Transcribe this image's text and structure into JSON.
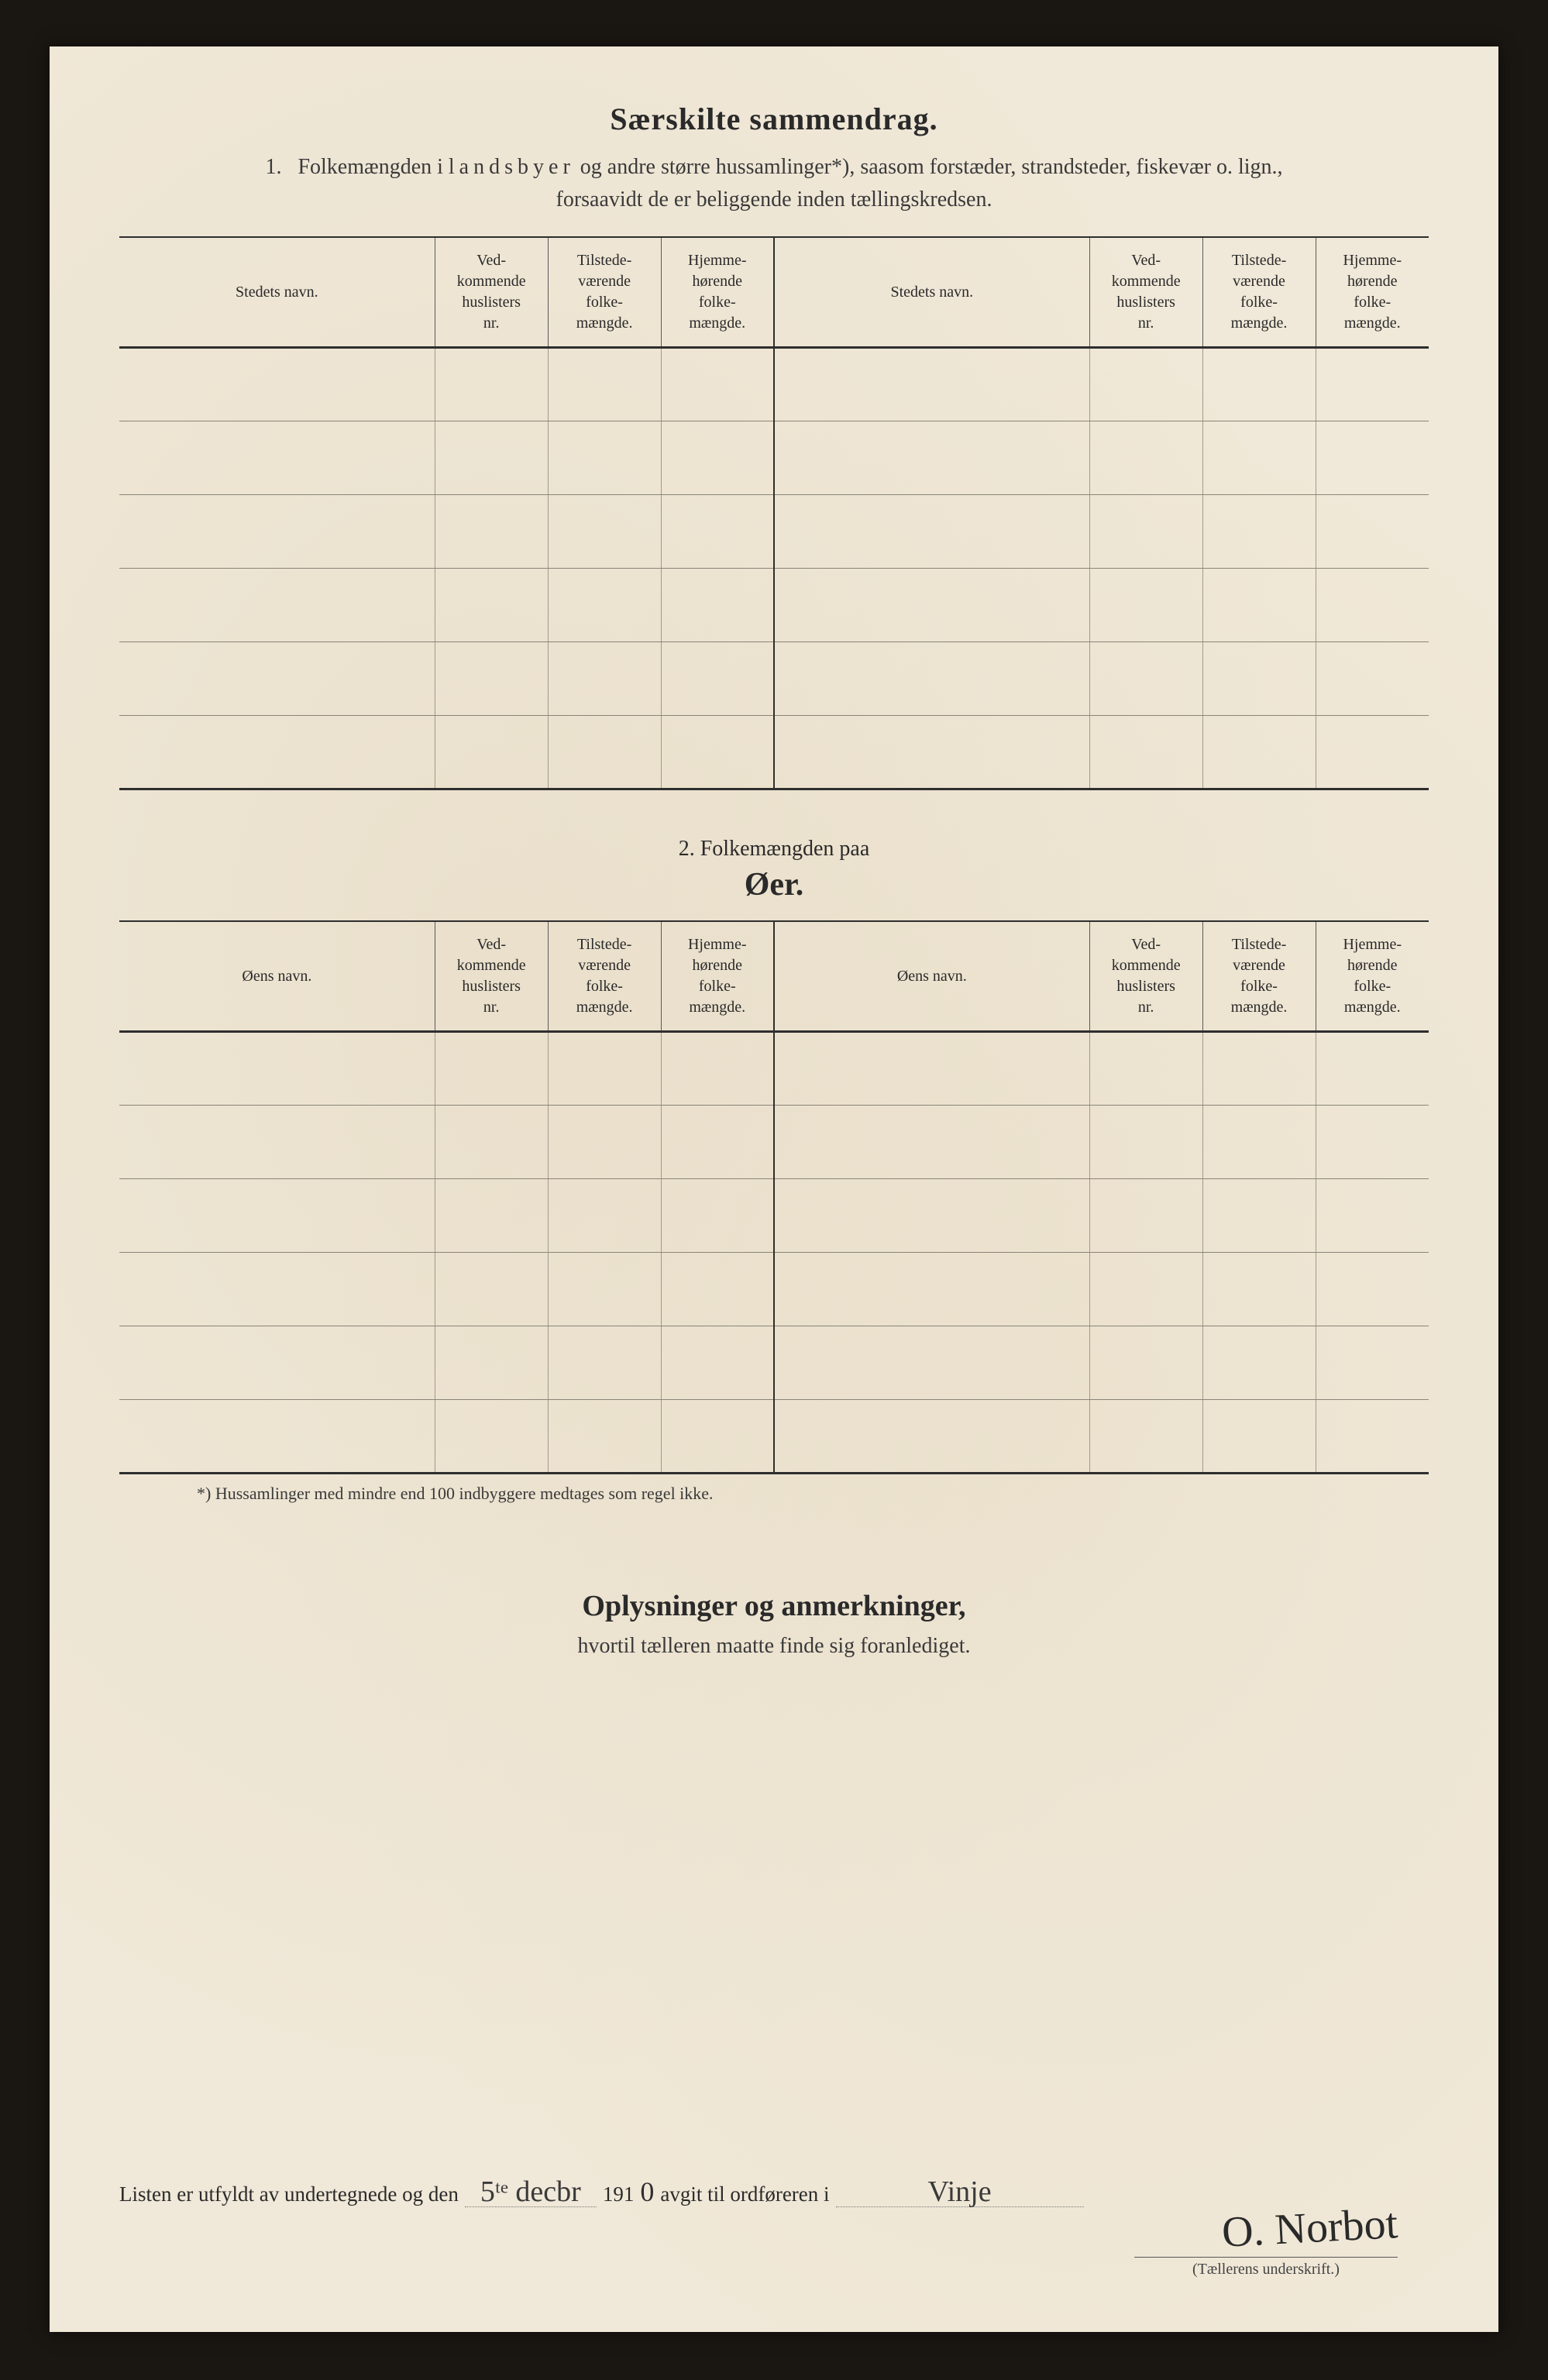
{
  "page_title": "Særskilte sammendrag.",
  "section1": {
    "number": "1.",
    "intro_line1": "Folkemængden i",
    "intro_spaced": "landsbyer",
    "intro_line1_tail": "og andre større hussamlinger*), saasom forstæder, strandsteder, fiskevær o. lign.,",
    "intro_line2": "forsaavidt de er beliggende inden tællingskredsen."
  },
  "table_common_headers": {
    "col_name_a": "Stedets navn.",
    "col_huslister": "Ved-\nkommende\nhuslisters\nnr.",
    "col_tilstede": "Tilstede-\nværende\nfolke-\nmængde.",
    "col_hjemme": "Hjemme-\nhørende\nfolke-\nmængde.",
    "col_name_b": "Stedets navn."
  },
  "section2": {
    "caption": "2.   Folkemængden paa",
    "title": "Øer.",
    "col_name_a": "Øens navn.",
    "col_name_b": "Øens navn."
  },
  "footnote": "*) Hussamlinger med mindre end 100 indbyggere medtages som regel ikke.",
  "remarks": {
    "heading": "Oplysninger og anmerkninger,",
    "sub": "hvortil tælleren maatte finde sig foranlediget."
  },
  "signature": {
    "prefix": "Listen er utfyldt av undertegnede og den",
    "date_written": "5ᵗᵉ decbr",
    "year_print": "191",
    "year_written": "0",
    "mid": "avgit til ordføreren i",
    "place_written": "Vinje",
    "name_written": "O. Norbot",
    "caption": "(Tællerens underskrift.)"
  },
  "layout": {
    "rows_per_table": 6,
    "columns_per_half": 4
  },
  "colors": {
    "paper": "#f0e8d8",
    "ink": "#2a2a2a",
    "rule_heavy": "#2e2e2e",
    "rule_light": "#a09a8c",
    "backdrop": "#1a1612"
  }
}
